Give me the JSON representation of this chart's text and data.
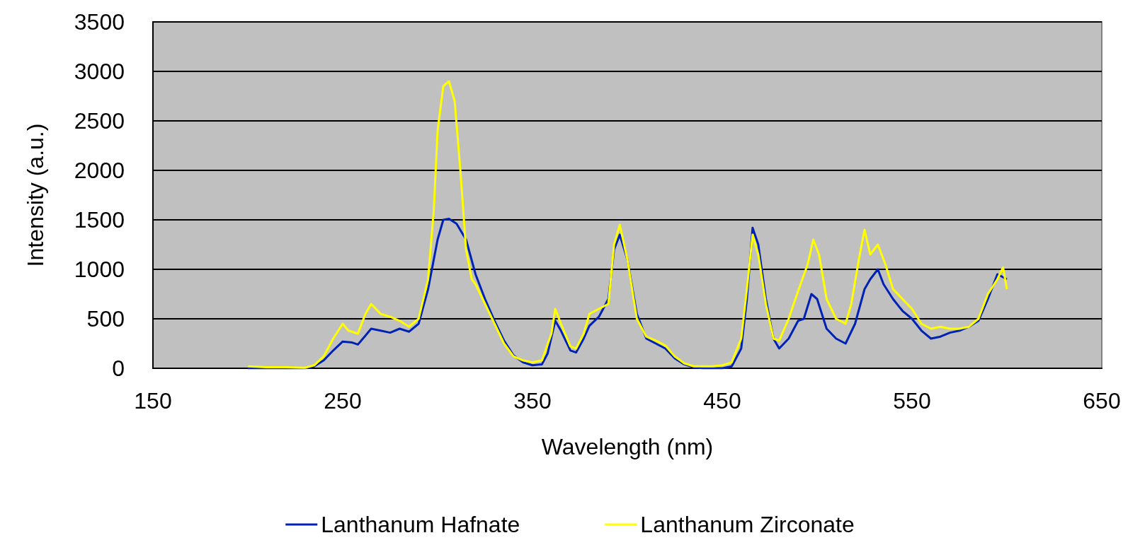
{
  "chart_data": {
    "type": "line",
    "xlabel": "Wavelength (nm)",
    "ylabel": "Intensity (a.u.)",
    "xlim": [
      150,
      650
    ],
    "xticks": [
      150,
      250,
      350,
      450,
      550,
      650
    ],
    "ylim": [
      0,
      3500
    ],
    "yticks": [
      0,
      500,
      1000,
      1500,
      2000,
      2500,
      3000,
      3500
    ],
    "grid": "y",
    "legend": "bottom",
    "marker": "none",
    "line_style": "solid",
    "series": [
      {
        "name": "Lanthanum Hafnate",
        "color": "#0022b4",
        "x": [
          200,
          210,
          220,
          230,
          235,
          240,
          245,
          250,
          255,
          258,
          262,
          265,
          270,
          275,
          280,
          285,
          290,
          295,
          300,
          303,
          306,
          310,
          315,
          320,
          325,
          330,
          335,
          340,
          345,
          350,
          355,
          358,
          362,
          365,
          370,
          373,
          377,
          380,
          385,
          390,
          393,
          396,
          400,
          405,
          410,
          415,
          420,
          425,
          430,
          435,
          440,
          445,
          450,
          455,
          460,
          463,
          466,
          469,
          473,
          477,
          480,
          485,
          490,
          493,
          497,
          500,
          505,
          510,
          515,
          520,
          525,
          528,
          532,
          535,
          540,
          545,
          550,
          555,
          560,
          565,
          570,
          575,
          580,
          585,
          590,
          595,
          600
        ],
        "values": [
          0,
          0,
          0,
          0,
          20,
          80,
          180,
          270,
          260,
          240,
          330,
          400,
          380,
          360,
          400,
          370,
          450,
          800,
          1300,
          1500,
          1510,
          1460,
          1300,
          950,
          700,
          480,
          280,
          130,
          60,
          30,
          40,
          150,
          480,
          380,
          180,
          160,
          300,
          430,
          520,
          700,
          1200,
          1350,
          1100,
          550,
          300,
          250,
          200,
          100,
          40,
          10,
          0,
          0,
          0,
          20,
          200,
          700,
          1420,
          1250,
          700,
          300,
          200,
          300,
          480,
          500,
          750,
          700,
          400,
          300,
          250,
          450,
          800,
          900,
          1000,
          850,
          700,
          580,
          500,
          380,
          300,
          320,
          360,
          380,
          420,
          480,
          700,
          950,
          900
        ]
      },
      {
        "name": "Lanthanum Zirconate",
        "color": "#ffff00",
        "x": [
          200,
          210,
          220,
          230,
          235,
          240,
          245,
          250,
          253,
          258,
          262,
          265,
          270,
          275,
          280,
          285,
          290,
          295,
          298,
          300,
          303,
          306,
          309,
          312,
          315,
          318,
          320,
          325,
          330,
          335,
          340,
          345,
          350,
          355,
          360,
          362,
          365,
          370,
          373,
          377,
          380,
          385,
          390,
          393,
          396,
          400,
          405,
          410,
          415,
          420,
          425,
          430,
          435,
          440,
          445,
          450,
          455,
          460,
          463,
          466,
          469,
          473,
          477,
          480,
          485,
          490,
          495,
          498,
          501,
          505,
          510,
          515,
          518,
          522,
          525,
          528,
          532,
          536,
          540,
          545,
          550,
          555,
          560,
          565,
          570,
          575,
          580,
          585,
          590,
          595,
          598,
          600
        ],
        "values": [
          20,
          10,
          10,
          5,
          30,
          120,
          300,
          450,
          380,
          350,
          550,
          650,
          550,
          520,
          480,
          420,
          500,
          900,
          1600,
          2400,
          2850,
          2900,
          2700,
          2000,
          1200,
          900,
          850,
          650,
          450,
          250,
          120,
          80,
          60,
          80,
          350,
          600,
          450,
          220,
          200,
          350,
          550,
          600,
          650,
          1250,
          1450,
          1100,
          500,
          320,
          280,
          230,
          120,
          50,
          20,
          20,
          20,
          30,
          60,
          300,
          800,
          1350,
          1150,
          650,
          300,
          280,
          500,
          780,
          1050,
          1300,
          1150,
          700,
          500,
          450,
          650,
          1100,
          1400,
          1150,
          1250,
          1050,
          800,
          700,
          600,
          450,
          400,
          420,
          400,
          400,
          420,
          500,
          750,
          900,
          1020,
          800
        ]
      }
    ]
  }
}
